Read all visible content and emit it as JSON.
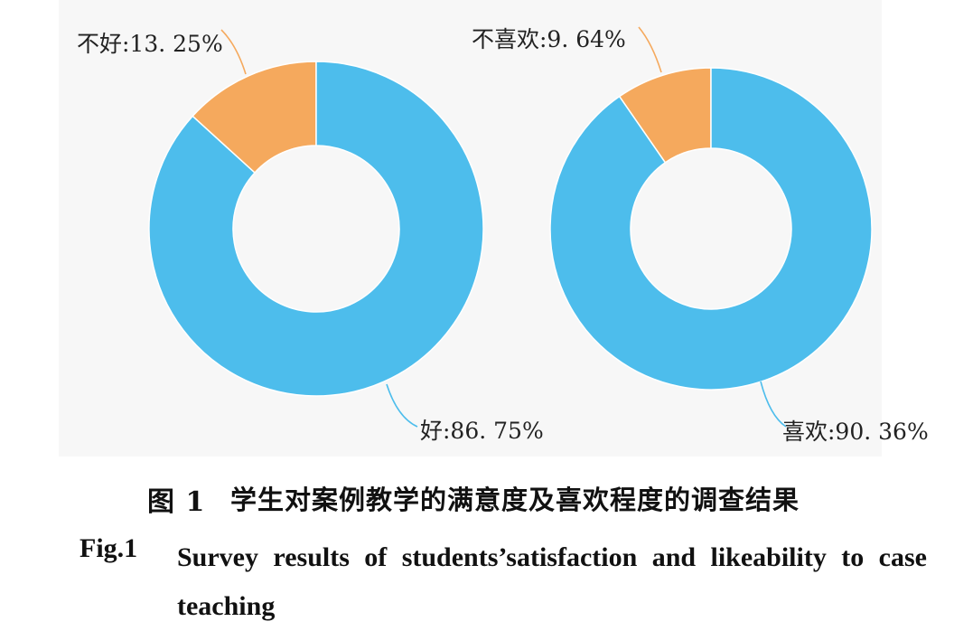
{
  "chart_data": [
    {
      "type": "pie",
      "style": "donut",
      "slices": [
        {
          "label": "不好",
          "value": 13.25,
          "label_text": "不好:13. 25%",
          "color": "#f5a95d"
        },
        {
          "label": "好",
          "value": 86.75,
          "label_text": "好:86. 75%",
          "color": "#4dbdec"
        }
      ]
    },
    {
      "type": "pie",
      "style": "donut",
      "slices": [
        {
          "label": "不喜欢",
          "value": 9.64,
          "label_text": "不喜欢:9. 64%",
          "color": "#f5a95d"
        },
        {
          "label": "喜欢",
          "value": 90.36,
          "label_text": "喜欢:90. 36%",
          "color": "#4dbdec"
        }
      ]
    }
  ],
  "caption": {
    "cn_label": "图 1",
    "cn_text": "学生对案例教学的满意度及喜欢程度的调查结果",
    "en_label": "Fig.1",
    "en_text": "Survey results of students’satisfaction and likeability to case teaching"
  },
  "colors": {
    "panel_bg": "#f7f7f7",
    "blue": "#4dbdec",
    "orange": "#f5a95d",
    "hole": "#ffffff"
  }
}
